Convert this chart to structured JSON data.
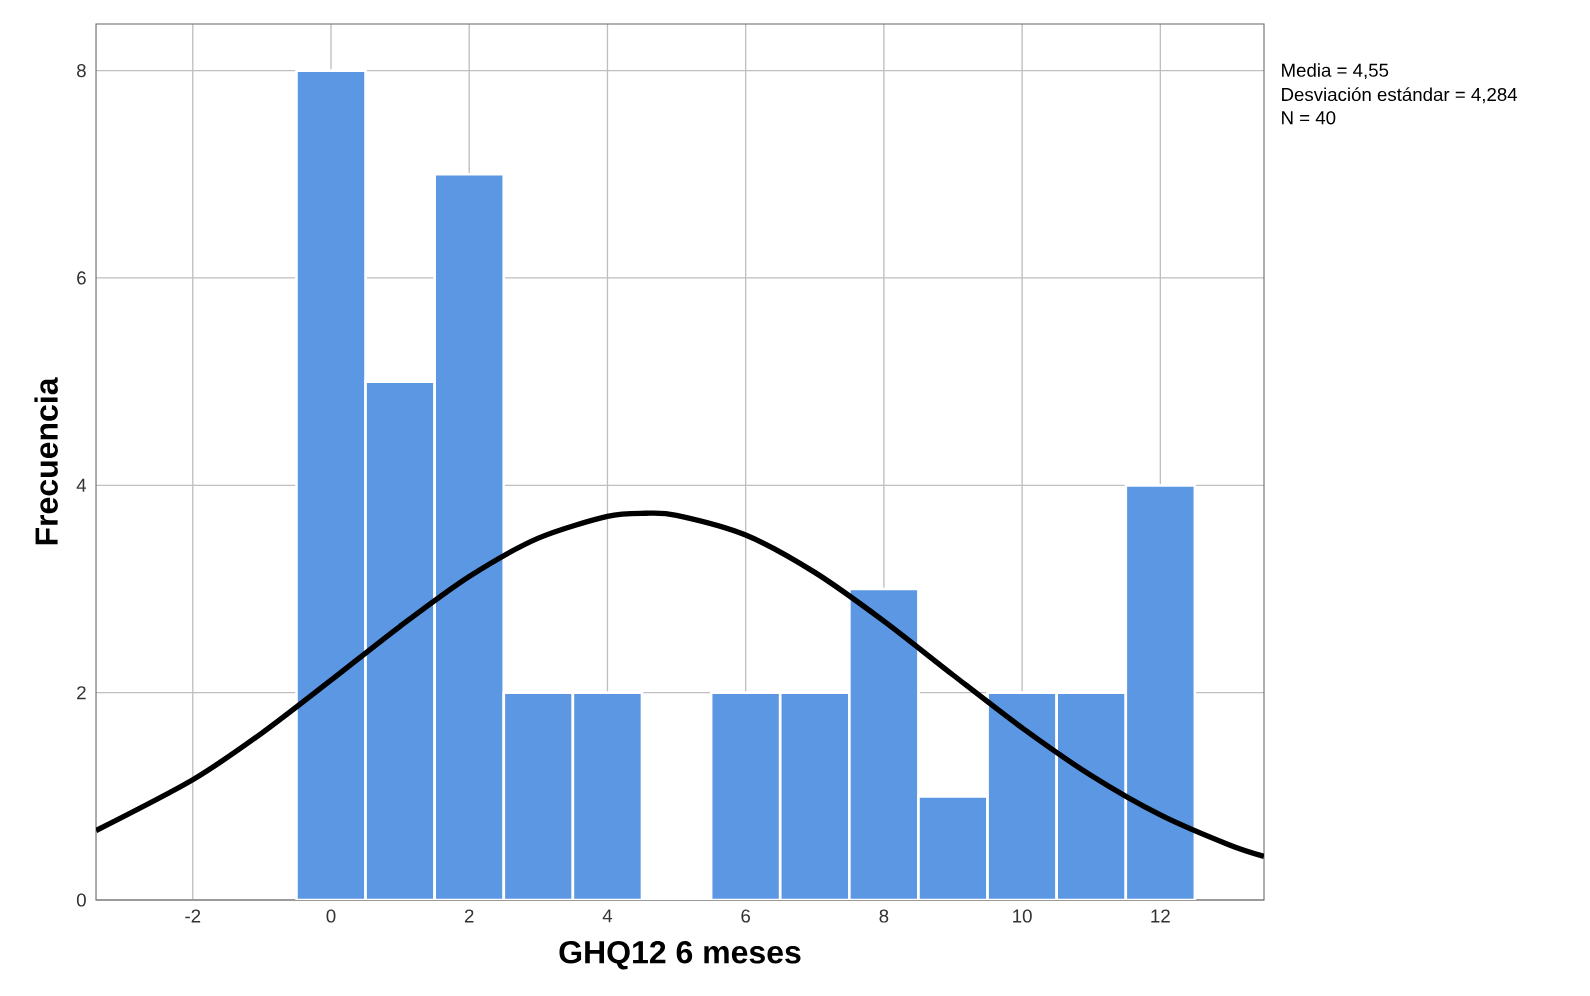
{
  "chart_data": {
    "type": "histogram",
    "xlabel": "GHQ12 6 meses",
    "ylabel": "Frecuencia",
    "bins": [
      -0.5,
      0.5,
      1.5,
      2.5,
      3.5,
      4.5,
      5.5,
      6.5,
      7.5,
      8.5,
      9.5,
      10.5,
      11.5,
      12.5
    ],
    "series": [
      {
        "color": "#5b97e3",
        "values": [
          8,
          5,
          7,
          2,
          2,
          0,
          2,
          2,
          3,
          1,
          2,
          2,
          4
        ]
      },
      {
        "type": "line",
        "color": "#000000",
        "x": [
          -3.4,
          -2,
          -1,
          0,
          1,
          2,
          3,
          4,
          4.55,
          5,
          6,
          7,
          8,
          9,
          10,
          11,
          12,
          13,
          13.5
        ],
        "values": [
          0.67,
          1.16,
          1.61,
          2.12,
          2.64,
          3.12,
          3.49,
          3.7,
          3.73,
          3.71,
          3.52,
          3.16,
          2.69,
          2.17,
          1.66,
          1.2,
          0.82,
          0.53,
          0.42
        ]
      }
    ],
    "xlim": [
      -3.4,
      13.5
    ],
    "ylim": [
      0,
      8.45
    ],
    "xticks": [
      -2,
      0,
      2,
      4,
      6,
      8,
      10,
      12
    ],
    "yticks": [
      0,
      2,
      4,
      6,
      8
    ],
    "grid": true,
    "annotations": [
      "Media = 4,55",
      "Desviación estándar = 4,284",
      "N = 40"
    ]
  }
}
